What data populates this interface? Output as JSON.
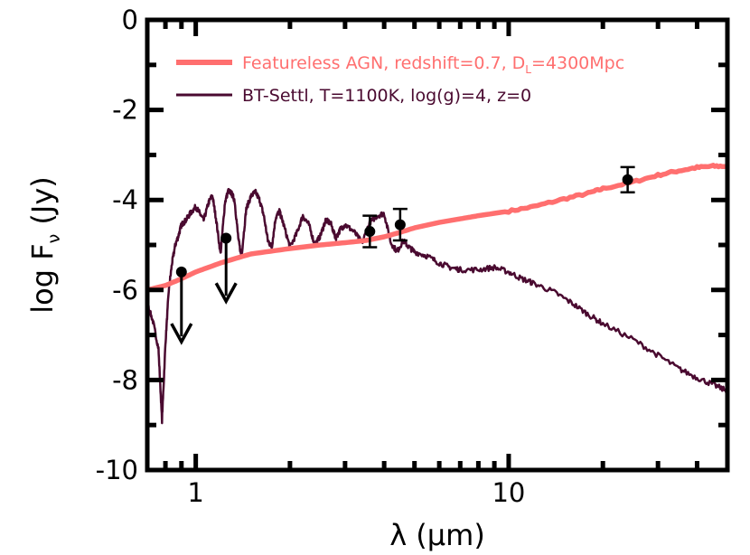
{
  "chart_data": {
    "type": "line",
    "title": "",
    "xscale": "log",
    "xlim": [
      0.7,
      50
    ],
    "ylim": [
      -10,
      0
    ],
    "xlabel": "λ (μm)",
    "ylabel_main": "log F",
    "ylabel_sub": "ν",
    "ylabel_unit": " (Jy)",
    "x_ticks": [
      {
        "value": 1,
        "label": "1"
      },
      {
        "value": 10,
        "label": "10"
      }
    ],
    "y_ticks": [
      {
        "value": 0,
        "label": "0"
      },
      {
        "value": -2,
        "label": "-2"
      },
      {
        "value": -4,
        "label": "-4"
      },
      {
        "value": -6,
        "label": "-6"
      },
      {
        "value": -8,
        "label": "-8"
      },
      {
        "value": -10,
        "label": "-10"
      }
    ],
    "legend": {
      "position": "top",
      "agn_label_main": "Featureless AGN, redshift=0.7, D",
      "agn_label_sub": "L",
      "agn_label_tail": "=4300Mpc",
      "bt_label": "BT-Settl, T=1100K, log(g)=4, z=0"
    },
    "series": [
      {
        "name": "Featureless AGN, redshift=0.7, DL=4300Mpc",
        "color": "#ff6f6f",
        "x": [
          0.7,
          0.8,
          0.9,
          1.0,
          1.2,
          1.5,
          2.0,
          2.5,
          3.0,
          3.5,
          4.0,
          4.5,
          5.0,
          6.0,
          7.0,
          8.0,
          10.0,
          12.0,
          15.0,
          18.0,
          20.0,
          25.0,
          30.0,
          35.0,
          40.0,
          45.0,
          50.0
        ],
        "y": [
          -6.0,
          -5.9,
          -5.75,
          -5.6,
          -5.4,
          -5.2,
          -5.08,
          -5.0,
          -4.95,
          -4.9,
          -4.82,
          -4.72,
          -4.62,
          -4.5,
          -4.42,
          -4.35,
          -4.25,
          -4.15,
          -3.98,
          -3.85,
          -3.75,
          -3.6,
          -3.45,
          -3.35,
          -3.28,
          -3.25,
          -3.25
        ]
      },
      {
        "name": "BT-Settl, T=1100K, log(g)=4, z=0",
        "color": "#4a0a30",
        "x": [
          0.7,
          0.73,
          0.76,
          0.78,
          0.8,
          0.82,
          0.84,
          0.86,
          0.88,
          0.9,
          0.93,
          0.96,
          1.0,
          1.03,
          1.06,
          1.1,
          1.13,
          1.16,
          1.2,
          1.24,
          1.27,
          1.3,
          1.33,
          1.37,
          1.4,
          1.45,
          1.5,
          1.55,
          1.6,
          1.65,
          1.7,
          1.75,
          1.8,
          1.85,
          1.9,
          2.0,
          2.1,
          2.2,
          2.3,
          2.4,
          2.5,
          2.6,
          2.7,
          2.8,
          2.9,
          3.0,
          3.2,
          3.4,
          3.6,
          3.8,
          4.0,
          4.2,
          4.4,
          4.6,
          4.8,
          5.0,
          5.5,
          6.0,
          6.5,
          7.0,
          8.0,
          9.0,
          10.0,
          11.0,
          12.0,
          14.0,
          16.0,
          18.0,
          20.0,
          25.0,
          30.0,
          35.0,
          40.0,
          45.0,
          50.0
        ],
        "y": [
          -6.3,
          -6.7,
          -7.3,
          -8.9,
          -7.2,
          -6.0,
          -5.4,
          -5.0,
          -4.8,
          -4.55,
          -4.45,
          -4.3,
          -4.15,
          -4.3,
          -4.45,
          -4.05,
          -3.9,
          -4.4,
          -5.2,
          -4.05,
          -3.8,
          -3.85,
          -4.0,
          -4.9,
          -5.25,
          -4.2,
          -3.92,
          -3.82,
          -4.0,
          -4.35,
          -4.9,
          -5.05,
          -4.4,
          -4.25,
          -4.5,
          -5.05,
          -4.75,
          -4.35,
          -4.55,
          -5.0,
          -4.8,
          -4.45,
          -4.52,
          -4.85,
          -4.65,
          -4.55,
          -4.7,
          -4.95,
          -4.5,
          -4.35,
          -4.3,
          -4.95,
          -5.15,
          -4.9,
          -5.05,
          -5.15,
          -5.25,
          -5.4,
          -5.5,
          -5.55,
          -5.55,
          -5.5,
          -5.6,
          -5.75,
          -5.85,
          -6.05,
          -6.3,
          -6.55,
          -6.75,
          -7.1,
          -7.45,
          -7.75,
          -7.95,
          -8.1,
          -8.25
        ]
      }
    ],
    "measurements": [
      {
        "x": 3.6,
        "y": -4.7,
        "yerr": 0.35
      },
      {
        "x": 4.5,
        "y": -4.55,
        "yerr": 0.35
      },
      {
        "x": 24.0,
        "y": -3.55,
        "yerr": 0.28
      }
    ],
    "upper_limits": [
      {
        "x": 0.9,
        "y": -5.6,
        "arrow_to": -7.15
      },
      {
        "x": 1.25,
        "y": -4.85,
        "arrow_to": -6.25
      }
    ],
    "colors": {
      "agn": "#ff6f6f",
      "btsettl": "#4a0a30",
      "points": "#000000"
    }
  }
}
